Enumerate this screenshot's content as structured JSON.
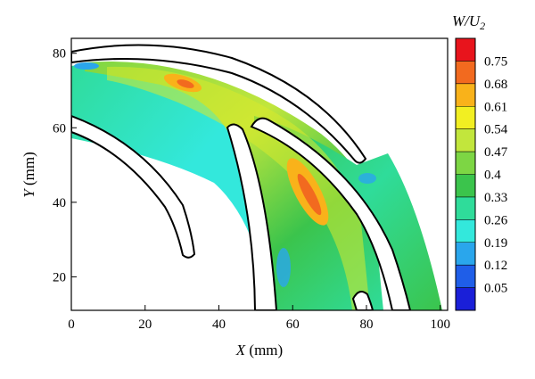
{
  "chart_data": {
    "type": "heatmap",
    "title": "",
    "xlabel": {
      "var": "X",
      "unit": " (mm)"
    },
    "ylabel": {
      "var": "Y",
      "unit": " (mm)"
    },
    "xlim": [
      0,
      102
    ],
    "ylim": [
      11,
      84
    ],
    "xticks": [
      0,
      20,
      40,
      60,
      80,
      100
    ],
    "yticks": [
      20,
      40,
      60,
      80
    ],
    "grid": false,
    "colorbar": {
      "title_main": "W/U",
      "title_sub": "2",
      "placement": "right",
      "levels": [
        "0.75",
        "0.68",
        "0.61",
        "0.54",
        "0.47",
        "0.4",
        "0.33",
        "0.26",
        "0.19",
        "0.12",
        "0.05"
      ],
      "colors": [
        "#e8141c",
        "#f26a1f",
        "#f9b21a",
        "#f2ef22",
        "#c2e63c",
        "#7dd644",
        "#3bc44c",
        "#2fdc9a",
        "#33e8dc",
        "#2aa6ec",
        "#1f5ee8",
        "#1a1fd8"
      ]
    },
    "regions": [
      {
        "name": "passage-left",
        "level": 0.26
      },
      {
        "name": "passage-middle",
        "level": 0.4
      },
      {
        "name": "passage-right",
        "level": 0.4
      },
      {
        "name": "hot-zone-top",
        "level": 0.68
      },
      {
        "name": "hot-zone-middle",
        "level": 0.68
      }
    ]
  }
}
